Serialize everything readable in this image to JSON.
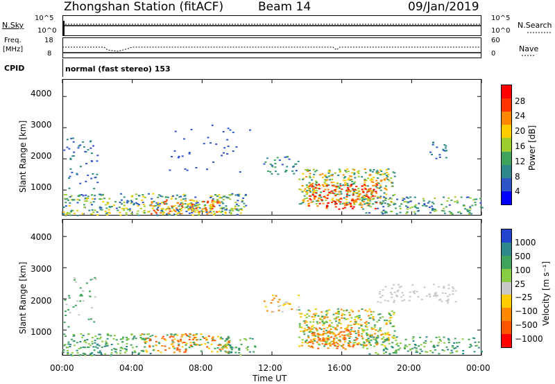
{
  "header": {
    "station": "Zhongshan Station (fitACF)",
    "beam": "Beam 14",
    "date": "09/Jan/2019"
  },
  "top_panel": {
    "nsky_label": "N.Sky",
    "nsearch_label": "N.Search",
    "left_ticks": [
      "10^5",
      "10^0"
    ],
    "right_ticks": [
      "10^5",
      "10^0"
    ]
  },
  "freq_panel": {
    "freq_label_1": "Freq.",
    "freq_label_2": "[MHz]",
    "nave_label": "Nave",
    "left_ticks": [
      "18",
      "8"
    ],
    "right_ticks": [
      "60",
      "0"
    ]
  },
  "cpid": {
    "label": "CPID",
    "value": "normal (fast stereo) 153"
  },
  "chart_data": [
    {
      "type": "heatmap",
      "name": "power",
      "ylabel": "Slant Range [km]",
      "yticks": [
        "1000",
        "2000",
        "3000",
        "4000"
      ],
      "ylim": [
        180,
        4560
      ],
      "colorbar_label": "Power [dB]",
      "colorbar_ticks": [
        "4",
        "8",
        "12",
        "16",
        "20",
        "24",
        "28"
      ],
      "colors": [
        "#0000ff",
        "#2e55c8",
        "#2e8a8a",
        "#3fa35e",
        "#9ccc2e",
        "#ffcc00",
        "#ff8800",
        "#ff3300",
        "#ff0000"
      ]
    },
    {
      "type": "heatmap",
      "name": "velocity",
      "ylabel": "Slant Range [km]",
      "yticks": [
        "1000",
        "2000",
        "3000",
        "4000"
      ],
      "ylim": [
        180,
        4560
      ],
      "colorbar_label": "Velocity [m s⁻¹]",
      "colorbar_ticks": [
        "1000",
        "500",
        "100",
        "25",
        "−25",
        "−100",
        "−500",
        "−1000"
      ],
      "colors": [
        "#2244cc",
        "#2e8a8a",
        "#3fa35e",
        "#88cc44",
        "#c8c8c8",
        "#ffcc00",
        "#ff8800",
        "#ff5500",
        "#ff0000"
      ]
    }
  ],
  "x_axis": {
    "label": "Time UT",
    "ticks": [
      "00:00",
      "04:00",
      "08:00",
      "12:00",
      "16:00",
      "20:00",
      "00:00"
    ]
  }
}
